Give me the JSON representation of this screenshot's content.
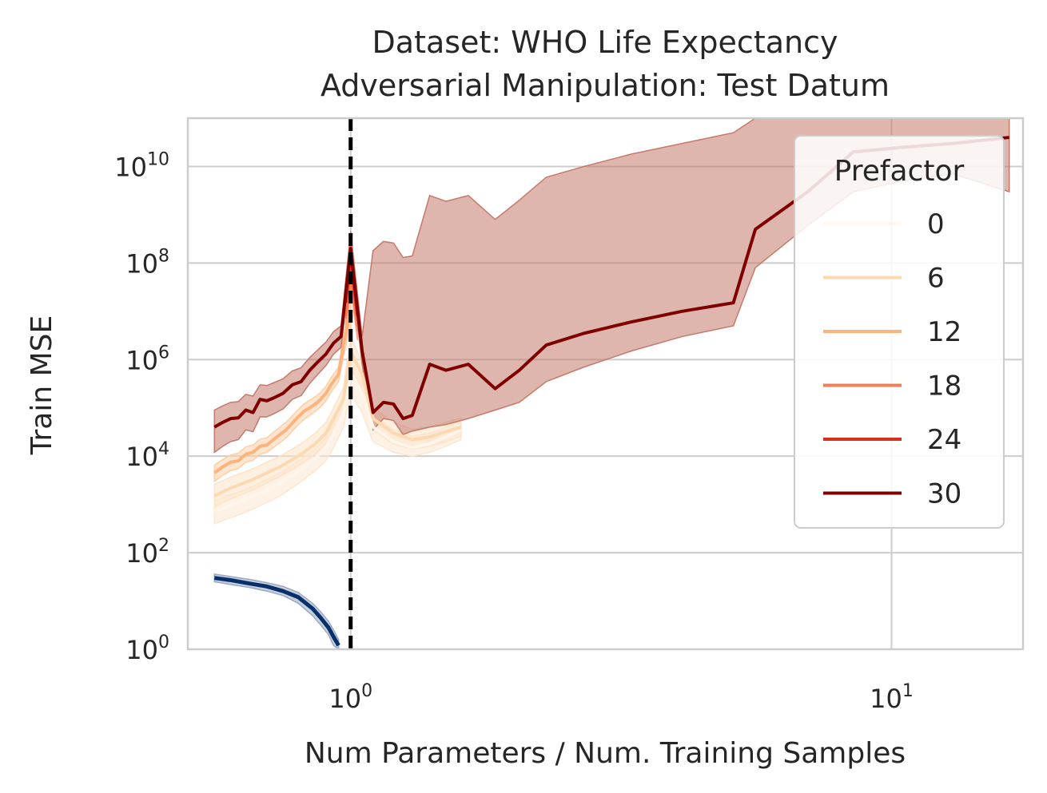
{
  "chart_data": {
    "type": "line",
    "title_line1": "Dataset: WHO Life Expectancy",
    "title_line2": "Adversarial Manipulation: Test Datum",
    "xlabel": "Num Parameters / Num. Training Samples",
    "ylabel": "Train MSE",
    "x_scale": "log",
    "y_scale": "log",
    "xlim": [
      0.5,
      17.5
    ],
    "ylim": [
      1,
      100000000000
    ],
    "x_ticks": [
      {
        "value": 1,
        "base": "10",
        "exp": "0"
      },
      {
        "value": 10,
        "base": "10",
        "exp": "1"
      }
    ],
    "y_ticks": [
      {
        "value": 1,
        "base": "10",
        "exp": "0"
      },
      {
        "value": 100,
        "base": "10",
        "exp": "2"
      },
      {
        "value": 10000,
        "base": "10",
        "exp": "4"
      },
      {
        "value": 1000000,
        "base": "10",
        "exp": "6"
      },
      {
        "value": 100000000,
        "base": "10",
        "exp": "8"
      },
      {
        "value": 10000000000,
        "base": "10",
        "exp": "10"
      }
    ],
    "interpolation_threshold": 1,
    "grid": true,
    "legend_position": "upper-right",
    "legend_title": "Prefactor",
    "series": [
      {
        "name": "0",
        "color": "#fff5eb",
        "band_color": "#fde7d1",
        "x": [
          0.56,
          0.59,
          0.62,
          0.66,
          0.7,
          0.74,
          0.78,
          0.82,
          0.86,
          0.9,
          0.93,
          0.97,
          1.0,
          1.05,
          1.1,
          1.2,
          1.3,
          1.4,
          1.5,
          1.6
        ],
        "y": [
          700,
          900,
          1100,
          1500,
          2000,
          2800,
          4000,
          6000,
          9000,
          15000,
          30000,
          80000,
          500000,
          200000,
          40000,
          20000,
          15000,
          18000,
          25000,
          35000
        ],
        "lower": [
          400,
          500,
          600,
          800,
          1100,
          1500,
          2200,
          3300,
          5000,
          8000,
          15000,
          40000,
          200000,
          80000,
          20000,
          12000,
          10000,
          12000,
          16000,
          22000
        ],
        "upper": [
          1200,
          1500,
          1800,
          2400,
          3300,
          4500,
          6500,
          9500,
          14000,
          24000,
          50000,
          150000,
          1200000,
          500000,
          70000,
          35000,
          26000,
          30000,
          40000,
          55000
        ]
      },
      {
        "name": "6",
        "color": "#fdd9b2",
        "band_color": "#fde3c8",
        "x": [
          0.56,
          0.59,
          0.62,
          0.66,
          0.7,
          0.74,
          0.78,
          0.82,
          0.86,
          0.9,
          0.93,
          0.97,
          1.0,
          1.05,
          1.1,
          1.2,
          1.3,
          1.4,
          1.5,
          1.6
        ],
        "y": [
          1500,
          2000,
          2500,
          3300,
          4500,
          6000,
          8500,
          12000,
          18000,
          30000,
          60000,
          150000,
          1500000,
          500000,
          60000,
          30000,
          22000,
          25000,
          32000,
          40000
        ],
        "lower": [
          900,
          1200,
          1500,
          2000,
          2800,
          3800,
          5300,
          7500,
          11000,
          18000,
          35000,
          90000,
          700000,
          250000,
          35000,
          18000,
          14000,
          16000,
          20000,
          26000
        ],
        "upper": [
          2600,
          3400,
          4200,
          5500,
          7500,
          10000,
          14000,
          20000,
          30000,
          50000,
          100000,
          260000,
          3000000,
          900000,
          100000,
          50000,
          36000,
          40000,
          50000,
          62000
        ]
      },
      {
        "name": "12",
        "color": "#fdb37d",
        "band_color": "#fdcfa8",
        "x": [
          0.56,
          0.58,
          0.6,
          0.62,
          0.64,
          0.66,
          0.68,
          0.7,
          0.72,
          0.74,
          0.76,
          0.78,
          0.8,
          0.82,
          0.84,
          0.86,
          0.88,
          0.9,
          0.92,
          0.95,
          0.97,
          1.0
        ],
        "y": [
          4500,
          6000,
          7500,
          8000,
          11000,
          12000,
          16000,
          17000,
          22000,
          28000,
          35000,
          48000,
          65000,
          85000,
          100000,
          120000,
          150000,
          200000,
          300000,
          500000,
          2000000,
          10000000
        ],
        "lower": [
          3000,
          4000,
          5000,
          5500,
          7500,
          8200,
          11000,
          12000,
          15000,
          19000,
          24000,
          33000,
          45000,
          58000,
          70000,
          85000,
          105000,
          140000,
          210000,
          350000,
          1200000,
          5000000
        ],
        "upper": [
          6500,
          8500,
          10500,
          11500,
          15500,
          17000,
          22500,
          24000,
          31000,
          40000,
          50000,
          68000,
          92000,
          120000,
          145000,
          170000,
          210000,
          280000,
          420000,
          700000,
          3200000,
          20000000
        ]
      },
      {
        "name": "18",
        "color": "#f67d53",
        "band_color": "#f9a98a",
        "x": [
          0.98,
          1.0,
          1.03
        ],
        "y": [
          8000000,
          60000000,
          5000000
        ],
        "lower": [
          4000000,
          30000000,
          2500000
        ],
        "upper": [
          16000000,
          120000000,
          10000000
        ]
      },
      {
        "name": "24",
        "color": "#d7301f",
        "band_color": "#e9826f",
        "x": [
          0.98,
          1.0,
          1.03
        ],
        "y": [
          15000000,
          120000000,
          8000000
        ],
        "lower": [
          7000000,
          60000000,
          4000000
        ],
        "upper": [
          30000000,
          250000000,
          16000000
        ]
      },
      {
        "name": "30",
        "color": "#7f0000",
        "band_color": "#c47a6b",
        "x": [
          0.56,
          0.58,
          0.6,
          0.62,
          0.64,
          0.66,
          0.68,
          0.7,
          0.72,
          0.75,
          0.78,
          0.81,
          0.84,
          0.87,
          0.9,
          0.93,
          0.96,
          1.0,
          1.05,
          1.1,
          1.15,
          1.2,
          1.25,
          1.3,
          1.4,
          1.5,
          1.65,
          1.85,
          2.05,
          2.3,
          2.7,
          3.3,
          4.1,
          5.1,
          5.6,
          7.0,
          8.5,
          10.5,
          13.0,
          16.5
        ],
        "y": [
          40000,
          50000,
          60000,
          62000,
          90000,
          80000,
          150000,
          140000,
          160000,
          200000,
          300000,
          350000,
          600000,
          900000,
          1300000,
          2200000,
          3000000,
          200000000,
          1500000,
          80000,
          130000,
          120000,
          60000,
          70000,
          800000,
          600000,
          800000,
          250000,
          600000,
          2000000,
          3500000,
          6000000,
          10000000,
          15000000,
          500000000,
          3000000000,
          20000000000,
          25000000000,
          30000000000,
          40000000000
        ],
        "lower": [
          12000,
          16000,
          20000,
          22000,
          35000,
          32000,
          65000,
          65000,
          75000,
          95000,
          150000,
          180000,
          320000,
          500000,
          750000,
          1300000,
          1800000,
          100000000,
          800000,
          35000,
          60000,
          55000,
          28000,
          33000,
          40000,
          45000,
          60000,
          90000,
          130000,
          350000,
          700000,
          1500000,
          3000000,
          5000000,
          80000000,
          600000000,
          3000000000,
          5000000000,
          7000000000,
          3000000000
        ],
        "upper": [
          90000,
          110000,
          130000,
          135000,
          190000,
          175000,
          300000,
          290000,
          330000,
          400000,
          580000,
          680000,
          1100000,
          1600000,
          2300000,
          3800000,
          5000000,
          450000000,
          3000000,
          180000000,
          280000000,
          260000000,
          130000000,
          140000000,
          2500000000,
          1900000000,
          2500000000,
          800000000,
          2000000000,
          6000000000,
          10000000000,
          18000000000,
          30000000000,
          50000000000,
          100000000000,
          100000000000,
          100000000000,
          100000000000,
          100000000000,
          100000000000
        ]
      }
    ],
    "test_series": {
      "color": "#08306b",
      "band_color": "#9aa9c2",
      "x": [
        0.56,
        0.6,
        0.65,
        0.7,
        0.75,
        0.8,
        0.85,
        0.88,
        0.91,
        0.93,
        0.95
      ],
      "y": [
        30,
        27,
        23,
        20,
        16,
        12,
        7,
        4.5,
        2.8,
        1.8,
        1.2
      ],
      "lower": [
        25,
        22,
        19,
        16,
        13,
        9,
        5,
        3.2,
        2.0,
        1.2,
        1.0
      ],
      "upper": [
        36,
        32,
        28,
        24,
        20,
        15,
        9,
        6,
        3.8,
        2.5,
        1.6
      ]
    }
  }
}
